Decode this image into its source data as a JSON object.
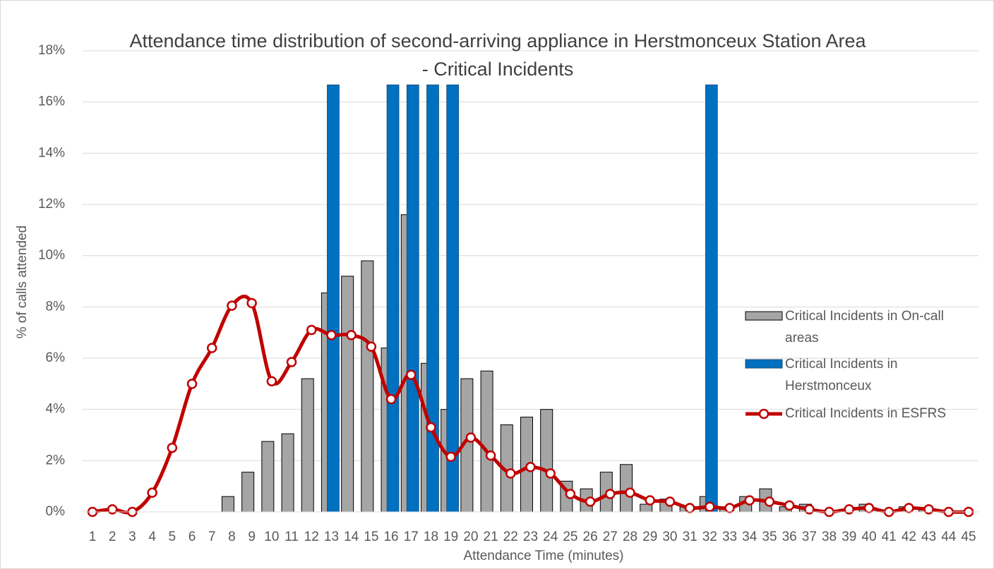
{
  "chart_data": {
    "type": "bar_line",
    "title": "Attendance time distribution of second-arriving appliance in Herstmonceux Station Area - Critical Incidents",
    "xlabel": "Attendance Time (minutes)",
    "ylabel": "% of calls attended",
    "categories": [
      "1",
      "2",
      "3",
      "4",
      "5",
      "6",
      "7",
      "8",
      "9",
      "10",
      "11",
      "12",
      "13",
      "14",
      "15",
      "16",
      "17",
      "18",
      "19",
      "20",
      "21",
      "22",
      "23",
      "24",
      "25",
      "26",
      "27",
      "28",
      "29",
      "30",
      "31",
      "32",
      "33",
      "34",
      "35",
      "36",
      "37",
      "38",
      "39",
      "40",
      "41",
      "42",
      "43",
      "44",
      "45"
    ],
    "series": [
      {
        "name": "Critical Incidents in On-call areas",
        "type": "bar",
        "color": "#a5a5a5",
        "values": [
          0,
          0,
          0,
          0,
          0,
          0,
          0,
          0.6,
          1.55,
          2.75,
          3.05,
          5.2,
          8.55,
          9.2,
          9.8,
          6.4,
          11.6,
          5.8,
          4.0,
          5.2,
          5.5,
          3.4,
          3.7,
          4.0,
          1.2,
          0.9,
          1.55,
          1.85,
          0.3,
          0.5,
          0.2,
          0.6,
          0.2,
          0.6,
          0.9,
          0.2,
          0.3,
          0,
          0.1,
          0.3,
          0,
          0.2,
          0.1,
          0,
          0
        ]
      },
      {
        "name": "Critical Incidents in Herstmonceux",
        "type": "bar",
        "color": "#0070c0",
        "values": [
          0,
          0,
          0,
          0,
          0,
          0,
          0,
          0,
          0,
          0,
          0,
          0,
          16.67,
          0,
          0,
          16.67,
          16.67,
          16.67,
          16.67,
          0,
          0,
          0,
          0,
          0,
          0,
          0,
          0,
          0,
          0,
          0,
          0,
          16.67,
          0,
          0,
          0,
          0,
          0,
          0,
          0,
          0,
          0,
          0,
          0,
          0,
          0
        ]
      },
      {
        "name": "Critical Incidents in ESFRS",
        "type": "line",
        "color": "#c00000",
        "values": [
          0,
          0.1,
          0,
          0.75,
          2.5,
          5.0,
          6.4,
          8.05,
          8.15,
          5.1,
          5.85,
          7.1,
          6.9,
          6.9,
          6.45,
          4.4,
          5.35,
          3.3,
          2.15,
          2.9,
          2.2,
          1.5,
          1.75,
          1.5,
          0.7,
          0.4,
          0.7,
          0.75,
          0.45,
          0.4,
          0.15,
          0.2,
          0.15,
          0.45,
          0.4,
          0.25,
          0.1,
          0,
          0.1,
          0.15,
          0,
          0.15,
          0.1,
          0,
          0
        ]
      }
    ],
    "ylim": [
      0,
      18
    ],
    "yticks": [
      {
        "value": 0,
        "label": "0%"
      },
      {
        "value": 2,
        "label": "2%"
      },
      {
        "value": 4,
        "label": "4%"
      },
      {
        "value": 6,
        "label": "6%"
      },
      {
        "value": 8,
        "label": "8%"
      },
      {
        "value": 10,
        "label": "10%"
      },
      {
        "value": 12,
        "label": "12%"
      },
      {
        "value": 14,
        "label": "14%"
      },
      {
        "value": 16,
        "label": "16%"
      },
      {
        "value": 18,
        "label": "18%"
      }
    ],
    "grid": true,
    "legend": "right"
  }
}
